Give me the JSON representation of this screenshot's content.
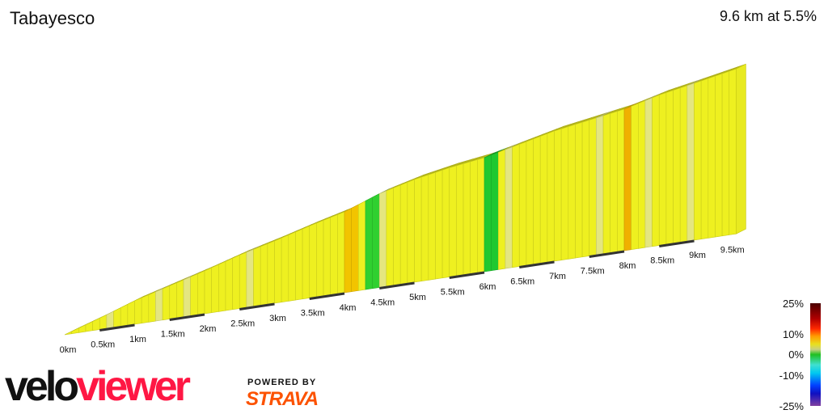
{
  "header": {
    "title": "Tabayesco",
    "summary": "9.6 km at 5.5%"
  },
  "chart_data": {
    "type": "area",
    "title": "Tabayesco",
    "subtitle": "9.6 km at 5.5%",
    "x_ticks": [
      "0km",
      "0.5km",
      "1km",
      "1.5km",
      "2km",
      "2.5km",
      "3km",
      "3.5km",
      "4km",
      "4.5km",
      "5km",
      "5.5km",
      "6km",
      "6.5km",
      "7km",
      "7.5km",
      "8km",
      "8.5km",
      "9km",
      "9.5km"
    ],
    "xlim": [
      0,
      9.6
    ],
    "distance_km": [
      0,
      0.5,
      1,
      1.5,
      2,
      2.5,
      3,
      3.5,
      4,
      4.5,
      5,
      5.5,
      6,
      6.5,
      7,
      7.5,
      8,
      8.5,
      9,
      9.6
    ],
    "relative_height": [
      0,
      14,
      29,
      41,
      53,
      66,
      77,
      89,
      100,
      116,
      127,
      135,
      141,
      151,
      161,
      168,
      175,
      186,
      194,
      204
    ],
    "segment_colors": [
      {
        "from": 0,
        "to": 4.0,
        "color": "#eef020"
      },
      {
        "from": 4.0,
        "to": 4.2,
        "color": "#f2c400"
      },
      {
        "from": 4.3,
        "to": 4.45,
        "color": "#30d030"
      },
      {
        "from": 4.45,
        "to": 6.0,
        "color": "#eef020"
      },
      {
        "from": 6.0,
        "to": 6.15,
        "color": "#20c830"
      },
      {
        "from": 6.15,
        "to": 8.0,
        "color": "#eef020"
      },
      {
        "from": 8.0,
        "to": 8.1,
        "color": "#f0b000"
      },
      {
        "from": 8.1,
        "to": 9.6,
        "color": "#eef020"
      }
    ],
    "light_segments": [
      0.6,
      1.3,
      1.7,
      2.6,
      4.5,
      6.3,
      7.6,
      8.3,
      8.9
    ],
    "color_scale": {
      "labels": [
        "25%",
        "10%",
        "0%",
        "-10%",
        "-25%"
      ]
    }
  },
  "branding": {
    "logo_left": "velo",
    "logo_right": "viewer",
    "powered_by": "POWERED BY",
    "strava": "STRAVA"
  }
}
